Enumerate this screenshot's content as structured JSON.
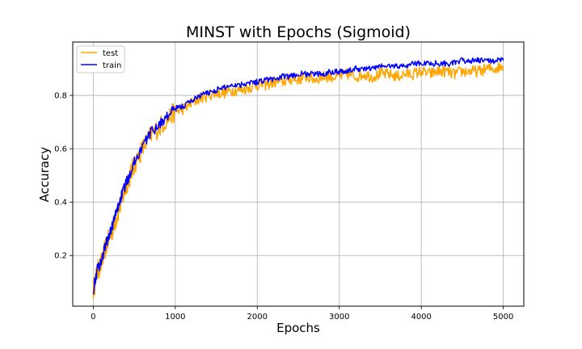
{
  "chart_data": {
    "type": "line",
    "title": "MINST with Epochs (Sigmoid)",
    "xlabel": "Epochs",
    "ylabel": "Accuracy",
    "xlim": [
      -250,
      5250
    ],
    "ylim": [
      0.01,
      1.0
    ],
    "xticks": [
      0,
      1000,
      2000,
      3000,
      4000,
      5000
    ],
    "yticks": [
      0.2,
      0.4,
      0.6,
      0.8
    ],
    "xtick_labels": [
      "0",
      "1000",
      "2000",
      "3000",
      "4000",
      "5000"
    ],
    "ytick_labels": [
      "0.2",
      "0.4",
      "0.6",
      "0.8"
    ],
    "grid": true,
    "legend_position": "upper left",
    "x": [
      0,
      50,
      100,
      150,
      200,
      250,
      300,
      350,
      400,
      450,
      500,
      600,
      700,
      800,
      900,
      1000,
      1100,
      1200,
      1300,
      1400,
      1500,
      1600,
      1700,
      1800,
      1900,
      2000,
      2100,
      2200,
      2300,
      2400,
      2500,
      2600,
      2700,
      2800,
      2900,
      3000,
      3100,
      3200,
      3300,
      3400,
      3500,
      3600,
      3700,
      3800,
      3900,
      4000,
      4100,
      4200,
      4300,
      4400,
      4500,
      4600,
      4700,
      4800,
      4900,
      5000
    ],
    "series": [
      {
        "name": "test",
        "color": "#FFA500",
        "values": [
          0.07,
          0.14,
          0.17,
          0.23,
          0.27,
          0.31,
          0.36,
          0.41,
          0.46,
          0.5,
          0.54,
          0.6,
          0.65,
          0.68,
          0.71,
          0.74,
          0.75,
          0.77,
          0.79,
          0.8,
          0.81,
          0.81,
          0.82,
          0.82,
          0.83,
          0.84,
          0.84,
          0.85,
          0.85,
          0.86,
          0.86,
          0.87,
          0.86,
          0.87,
          0.87,
          0.87,
          0.88,
          0.87,
          0.88,
          0.87,
          0.88,
          0.88,
          0.87,
          0.88,
          0.88,
          0.89,
          0.88,
          0.89,
          0.89,
          0.88,
          0.89,
          0.89,
          0.89,
          0.9,
          0.9,
          0.91
        ]
      },
      {
        "name": "train",
        "color": "#0000FF",
        "values": [
          0.07,
          0.15,
          0.18,
          0.24,
          0.28,
          0.33,
          0.38,
          0.43,
          0.47,
          0.51,
          0.55,
          0.61,
          0.66,
          0.69,
          0.72,
          0.75,
          0.76,
          0.78,
          0.8,
          0.81,
          0.82,
          0.83,
          0.84,
          0.84,
          0.85,
          0.85,
          0.86,
          0.86,
          0.87,
          0.87,
          0.88,
          0.88,
          0.88,
          0.88,
          0.89,
          0.89,
          0.89,
          0.9,
          0.9,
          0.9,
          0.91,
          0.91,
          0.91,
          0.91,
          0.92,
          0.92,
          0.92,
          0.92,
          0.92,
          0.92,
          0.93,
          0.93,
          0.93,
          0.93,
          0.93,
          0.93
        ]
      }
    ]
  }
}
